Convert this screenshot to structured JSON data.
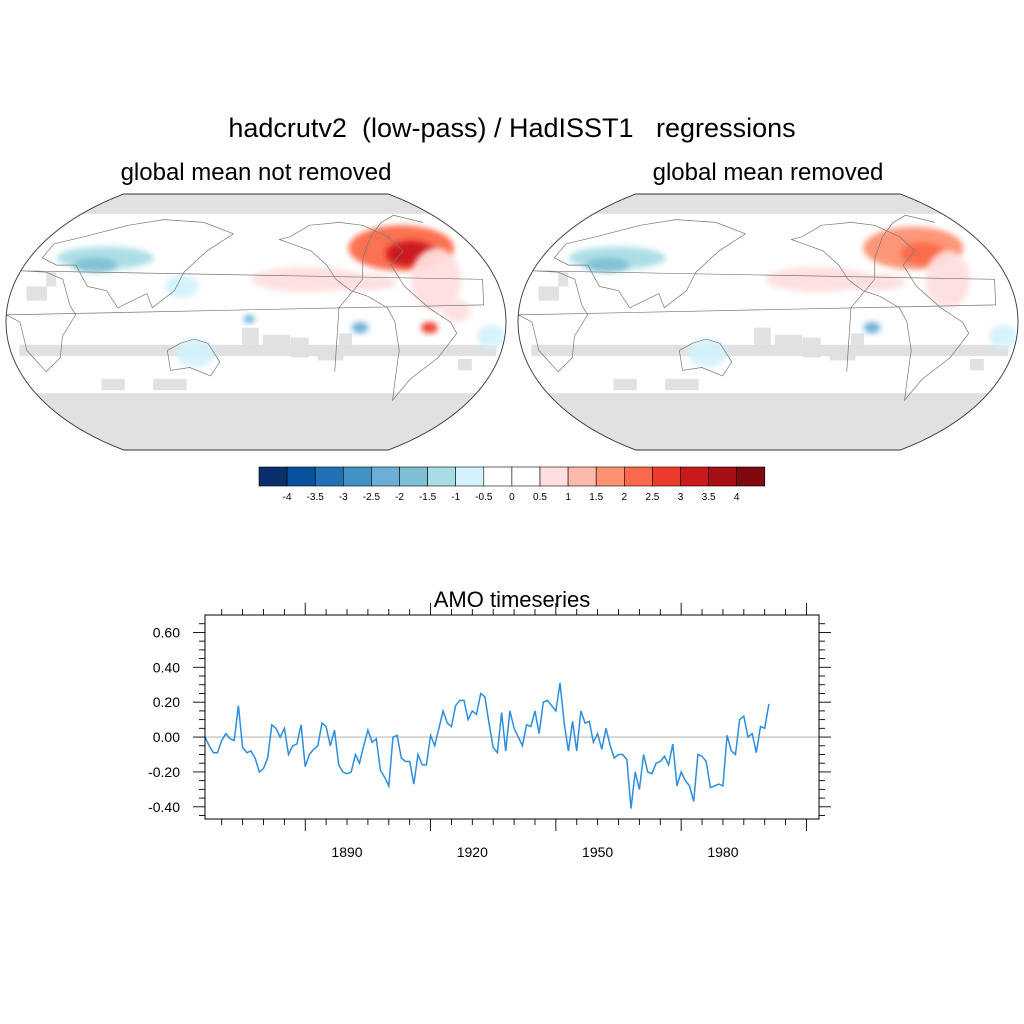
{
  "title": "hadcrutv2  (low-pass) / HadISST1   regressions",
  "chart_data": [
    {
      "type": "heatmap",
      "title": "global mean not removed",
      "projection": "Robinson, Pacific-centered",
      "missing_color": "#e1e1e1",
      "features": [
        {
          "lon": 300,
          "lat": 52,
          "rx": 38,
          "ry": 16,
          "value": 2.0
        },
        {
          "lon": 305,
          "lat": 48,
          "rx": 18,
          "ry": 9,
          "value": 3.0
        },
        {
          "lon": 315,
          "lat": 30,
          "rx": 18,
          "ry": 22,
          "value": 0.6
        },
        {
          "lon": 325,
          "lat": 8,
          "rx": 10,
          "ry": 8,
          "value": 0.6
        },
        {
          "lon": 218,
          "lat": 30,
          "rx": 40,
          "ry": 9,
          "value": 0.6
        },
        {
          "lon": 262,
          "lat": 28,
          "rx": 22,
          "ry": 6,
          "value": 0.6
        },
        {
          "lon": 305,
          "lat": -4,
          "rx": 6,
          "ry": 4,
          "value": 2.5
        },
        {
          "lon": 60,
          "lat": 45,
          "rx": 35,
          "ry": 8,
          "value": -1.2
        },
        {
          "lon": 55,
          "lat": 40,
          "rx": 16,
          "ry": 5,
          "value": -2.0
        },
        {
          "lon": 125,
          "lat": 25,
          "rx": 12,
          "ry": 8,
          "value": -0.6
        },
        {
          "lon": 135,
          "lat": -22,
          "rx": 14,
          "ry": 10,
          "value": -0.6
        },
        {
          "lon": 255,
          "lat": -4,
          "rx": 6,
          "ry": 4,
          "value": -2.5
        },
        {
          "lon": 175,
          "lat": 2,
          "rx": 4,
          "ry": 3,
          "value": -2.5
        },
        {
          "lon": 350,
          "lat": -10,
          "rx": 10,
          "ry": 8,
          "value": -0.6
        }
      ]
    },
    {
      "type": "heatmap",
      "title": "global mean removed",
      "projection": "Robinson, Pacific-centered",
      "missing_color": "#e1e1e1",
      "features": [
        {
          "lon": 300,
          "lat": 52,
          "rx": 36,
          "ry": 15,
          "value": 1.6
        },
        {
          "lon": 305,
          "lat": 48,
          "rx": 16,
          "ry": 8,
          "value": 2.4
        },
        {
          "lon": 315,
          "lat": 30,
          "rx": 16,
          "ry": 20,
          "value": 0.6
        },
        {
          "lon": 218,
          "lat": 30,
          "rx": 38,
          "ry": 9,
          "value": 0.6
        },
        {
          "lon": 262,
          "lat": 28,
          "rx": 20,
          "ry": 6,
          "value": 0.6
        },
        {
          "lon": 60,
          "lat": 45,
          "rx": 35,
          "ry": 8,
          "value": -1.2
        },
        {
          "lon": 55,
          "lat": 40,
          "rx": 16,
          "ry": 5,
          "value": -2.0
        },
        {
          "lon": 135,
          "lat": -22,
          "rx": 14,
          "ry": 10,
          "value": -0.6
        },
        {
          "lon": 255,
          "lat": -4,
          "rx": 6,
          "ry": 4,
          "value": -2.5
        },
        {
          "lon": 350,
          "lat": -10,
          "rx": 10,
          "ry": 8,
          "value": -0.6
        }
      ]
    },
    {
      "type": "colorbar",
      "levels": [
        "-4",
        "-3.5",
        "-3",
        "-2.5",
        "-2",
        "-1.5",
        "-1",
        "-0.5",
        "0",
        "0.5",
        "1",
        "1.5",
        "2",
        "2.5",
        "3",
        "3.5",
        "4"
      ],
      "colors": [
        "#08306b",
        "#08519c",
        "#2171b5",
        "#4292c6",
        "#6baed6",
        "#7fbfd5",
        "#a9dde5",
        "#d4f2fb",
        "#ffffff",
        "#ffffff",
        "#fedfe0",
        "#fdbaab",
        "#fc9272",
        "#fb6a4a",
        "#ef3b2c",
        "#cb181d",
        "#a50f15",
        "#7f0a0d"
      ]
    },
    {
      "type": "line",
      "title": "AMO timeseries",
      "xlim": [
        1856,
        2003
      ],
      "ylim": [
        -0.47,
        0.7
      ],
      "xticks": [
        1890,
        1920,
        1950,
        1980
      ],
      "yticks": [
        -0.4,
        -0.2,
        0.0,
        0.2,
        0.4,
        0.6
      ],
      "ytick_labels": [
        "-0.40",
        "-0.20",
        "0.00",
        "0.20",
        "0.40",
        "0.60"
      ],
      "line_color": "#2b8ee0",
      "zero_line_color": "#bbbbbb",
      "x_start": 1856,
      "x_step": 1,
      "values": [
        0.0,
        -0.05,
        -0.09,
        -0.09,
        -0.02,
        0.02,
        -0.01,
        -0.02,
        0.18,
        -0.06,
        -0.09,
        -0.08,
        -0.12,
        -0.2,
        -0.18,
        -0.12,
        0.07,
        0.05,
        0.0,
        0.05,
        -0.1,
        -0.05,
        -0.04,
        0.07,
        -0.17,
        -0.1,
        -0.07,
        -0.05,
        0.08,
        0.06,
        -0.05,
        0.04,
        -0.16,
        -0.2,
        -0.21,
        -0.2,
        -0.1,
        -0.15,
        -0.05,
        0.04,
        -0.03,
        -0.01,
        -0.19,
        -0.23,
        -0.28,
        0.0,
        0.01,
        -0.12,
        -0.14,
        -0.14,
        -0.27,
        -0.1,
        -0.16,
        -0.16,
        0.01,
        -0.05,
        0.05,
        0.15,
        0.08,
        0.06,
        0.18,
        0.21,
        0.21,
        0.1,
        0.15,
        0.13,
        0.25,
        0.23,
        0.08,
        -0.06,
        -0.09,
        0.14,
        -0.08,
        0.15,
        0.05,
        0.0,
        -0.05,
        0.07,
        0.06,
        0.15,
        0.02,
        0.2,
        0.21,
        0.18,
        0.15,
        0.31,
        0.08,
        -0.08,
        0.09,
        -0.08,
        0.15,
        0.08,
        0.09,
        -0.03,
        0.02,
        -0.07,
        0.05,
        -0.05,
        -0.12,
        -0.1,
        -0.1,
        -0.13,
        -0.41,
        -0.2,
        -0.3,
        -0.1,
        -0.2,
        -0.21,
        -0.15,
        -0.14,
        -0.11,
        -0.16,
        -0.04,
        -0.28,
        -0.2,
        -0.25,
        -0.28,
        -0.37,
        -0.1,
        -0.11,
        -0.14,
        -0.29,
        -0.28,
        -0.27,
        -0.28,
        0.01,
        -0.08,
        -0.1,
        0.1,
        0.12,
        0.0,
        0.02,
        -0.09,
        0.06,
        0.05,
        0.19
      ]
    }
  ]
}
